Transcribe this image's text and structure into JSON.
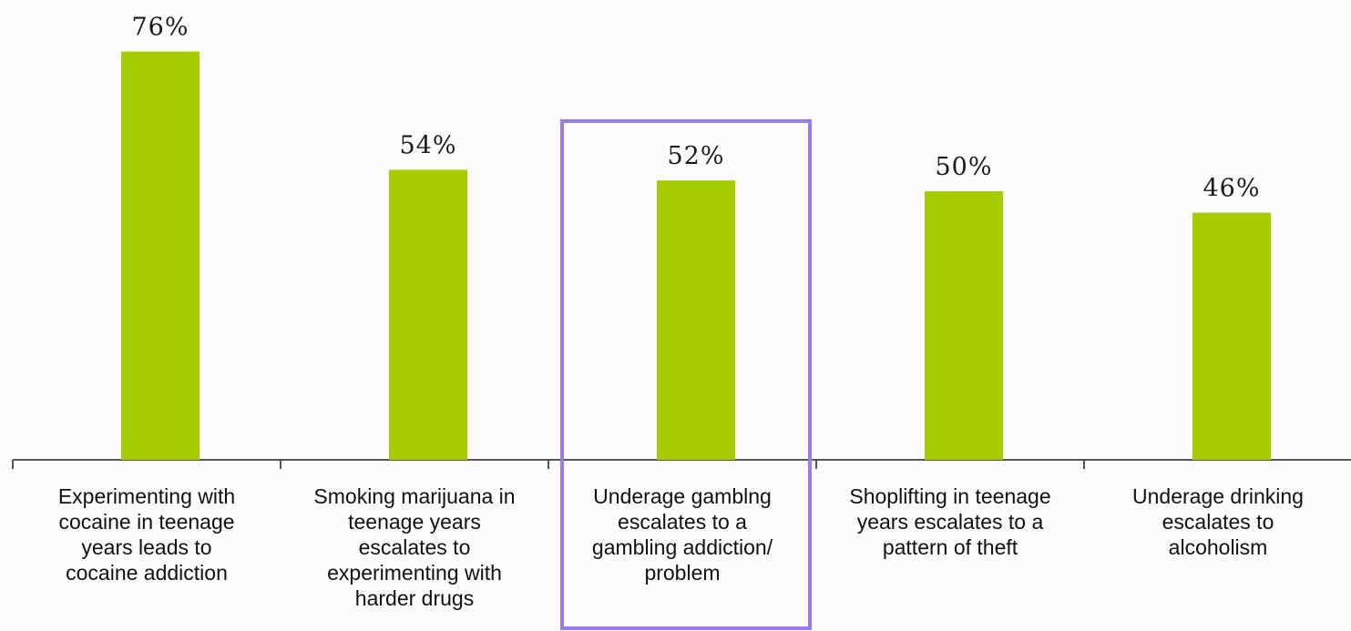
{
  "chart_data": {
    "type": "bar",
    "categories": [
      [
        "Experimenting with",
        "cocaine in teenage",
        "years leads to",
        "cocaine addiction"
      ],
      [
        "Smoking marijuana in",
        "teenage years",
        "escalates to",
        "experimenting with",
        "harder drugs"
      ],
      [
        "Underage gamblng",
        "escalates to a",
        "gambling addiction/",
        "problem"
      ],
      [
        "Shoplifting in teenage",
        "years escalates to a",
        "pattern of theft"
      ],
      [
        "Underage drinking",
        "escalates to",
        "alcoholism"
      ]
    ],
    "values": [
      76,
      54,
      52,
      50,
      46
    ],
    "value_labels": [
      "76%",
      "54%",
      "52%",
      "50%",
      "46%"
    ],
    "highlighted_category_index": 2,
    "ylim": [
      0,
      100
    ],
    "grid": false,
    "title": "",
    "xlabel": "",
    "ylabel": "",
    "colors": {
      "bar": "#a4cc00",
      "highlight_box": "#9a7af0",
      "axis": "#555555"
    }
  }
}
